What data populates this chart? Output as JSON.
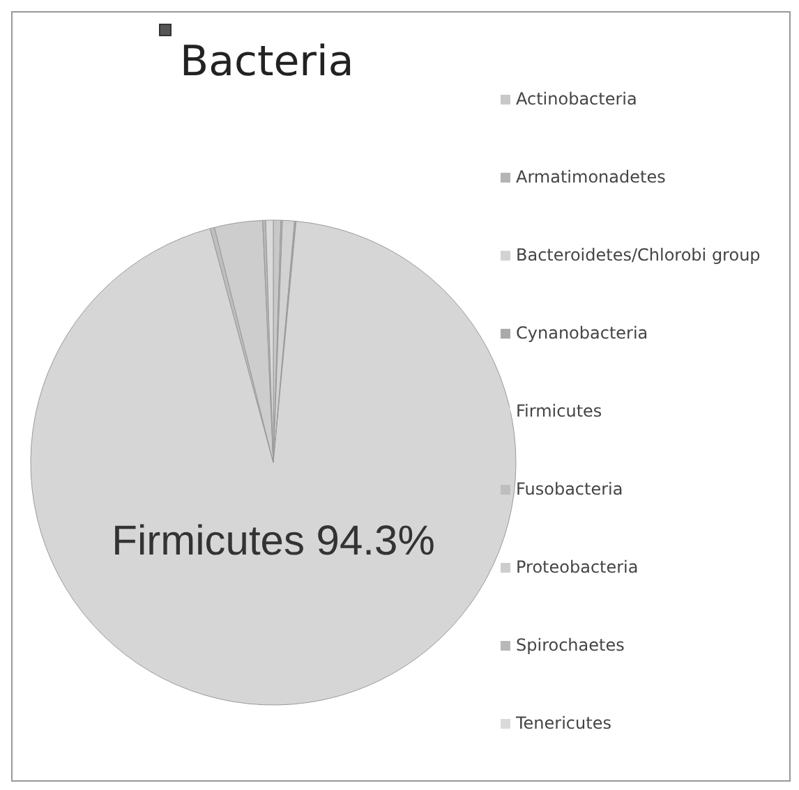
{
  "chart_data": {
    "type": "pie",
    "title": "Bacteria",
    "categories": [
      "Actinobacteria",
      "Armatimonadetes",
      "Bacteroidetes/Chlorobi group",
      "Cynanobacteria",
      "Firmicutes",
      "Fusobacteria",
      "Proteobacteria",
      "Spirochaetes",
      "Tenericutes"
    ],
    "values": [
      0.5,
      0.1,
      0.8,
      0.1,
      94.3,
      0.3,
      3.2,
      0.2,
      0.5
    ],
    "colors": [
      "#c8c8c8",
      "#b4b4b4",
      "#d2d2d2",
      "#aaaaaa",
      "#d6d6d6",
      "#bebebe",
      "#cdcdcd",
      "#b8b8b8",
      "#dadada"
    ],
    "value_labels": [
      null,
      null,
      null,
      null,
      "Firmicutes 94.3%",
      null,
      null,
      null,
      null
    ],
    "legend": "right"
  }
}
